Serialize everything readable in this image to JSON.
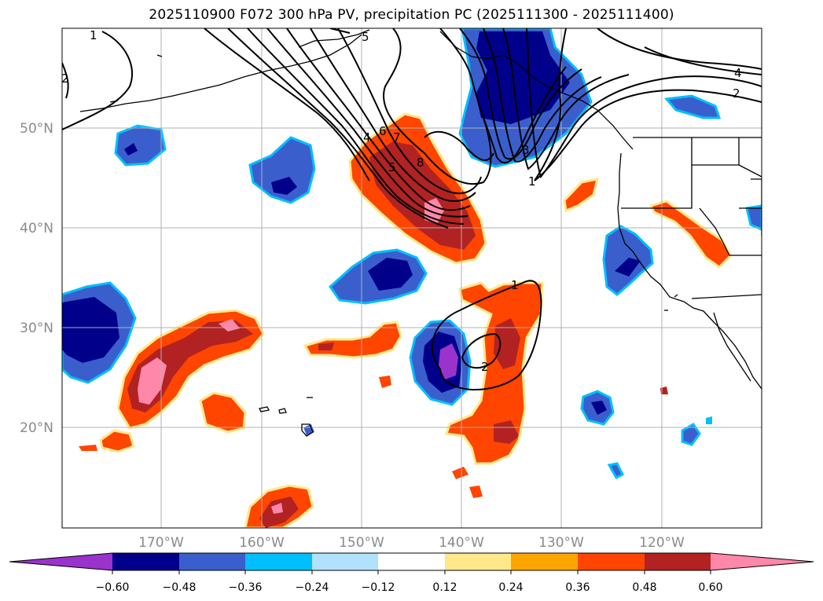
{
  "title": "2025110900 F072 300 hPa PV, precipitation PC (2025111300 - 2025111400)",
  "lat_labels": [
    "50°N",
    "40°N",
    "30°N",
    "20°N"
  ],
  "lon_labels": [
    "170°W",
    "160°W",
    "150°W",
    "140°W",
    "130°W",
    "120°W"
  ],
  "pv_contour_labels": [
    "1",
    "2",
    "5",
    "4",
    "6",
    "7",
    "5",
    "8",
    "3",
    "1",
    "4",
    "2",
    "1",
    "2"
  ],
  "colorbar": {
    "ticks": [
      "−0.60",
      "−0.48",
      "−0.36",
      "−0.24",
      "−0.12",
      "0.12",
      "0.24",
      "0.36",
      "0.48",
      "0.60"
    ],
    "colors": [
      "#9933cc",
      "#00008b",
      "#3a5fcd",
      "#00bfff",
      "#b0e2ff",
      "#ffffff",
      "#ffe88a",
      "#ffa500",
      "#ff4500",
      "#b22222",
      "#ff88aa",
      "#ff88aa"
    ]
  },
  "colors": {
    "neg_extreme": "#9933cc",
    "neg_strong": "#00008b",
    "neg_mod": "#3a5fcd",
    "neg_weak": "#00bfff",
    "neg_faint": "#b0e2ff",
    "pos_faint": "#ffe88a",
    "pos_weak": "#ffa500",
    "pos_mod": "#ff4500",
    "pos_strong": "#b22222",
    "pos_extreme": "#ff88aa"
  }
}
